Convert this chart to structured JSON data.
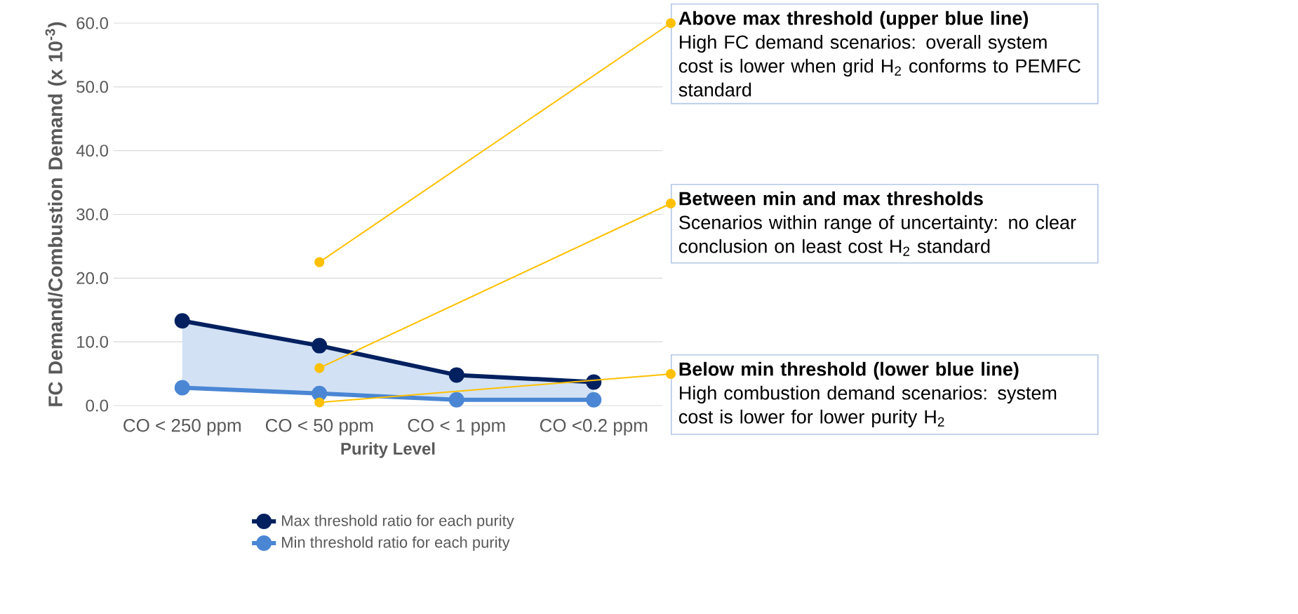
{
  "chart_data": {
    "type": "line",
    "xlabel": "Purity Level",
    "ylabel": "FC Demand/Combustion Demand (x 10$^{-3}$)",
    "categories": [
      "CO < 250 ppm",
      "CO < 50 ppm",
      "CO < 1 ppm",
      "CO <0.2 ppm"
    ],
    "series": [
      {
        "name": "Max threshold ratio for each purity",
        "color": "#002060",
        "values": [
          13.3,
          9.4,
          4.8,
          3.7
        ]
      },
      {
        "name": "Min threshold ratio for each purity",
        "color": "#4a86d4",
        "values": [
          2.8,
          1.9,
          0.9,
          0.9
        ],
        "lower": [
          2.8,
          1.9,
          0.9,
          0.9
        ],
        "upper": [
          13.3,
          9.4,
          4.8,
          3.7
        ]
      }
    ],
    "ylim": [
      0,
      60
    ],
    "yticks": [
      {
        "value": 0,
        "label": "0.0"
      },
      {
        "value": 10,
        "label": "10.0"
      },
      {
        "value": 20,
        "label": "20.0"
      },
      {
        "value": 30,
        "label": "30.0"
      },
      {
        "value": 40,
        "label": "40.0"
      },
      {
        "value": 50,
        "label": "50.0"
      },
      {
        "value": 60,
        "label": "60.0"
      }
    ],
    "grid": "y",
    "legend": "bottom",
    "marker": "circle",
    "annotations": [
      {
        "text": "Above max threshold (upper blue line)",
        "x": "CO < 50 ppm",
        "y": 22.5
      },
      "High FC demand scenarios: overall system cost is lower when grid H$_{2}$ conforms to PEMFC standard",
      {
        "text": "Between min and max thresholds",
        "x": "CO < 50 ppm",
        "y": 5.9
      },
      "Scenarios within range of uncertainty: no clear conclusion on least cost H$_{2}$ standard",
      {
        "text": "Below min threshold (lower blue line)",
        "x": "CO < 50 ppm",
        "y": 0.5
      },
      "High combustion demand scenarios: system cost is lower for lower purity H$_{2}$"
    ]
  }
}
